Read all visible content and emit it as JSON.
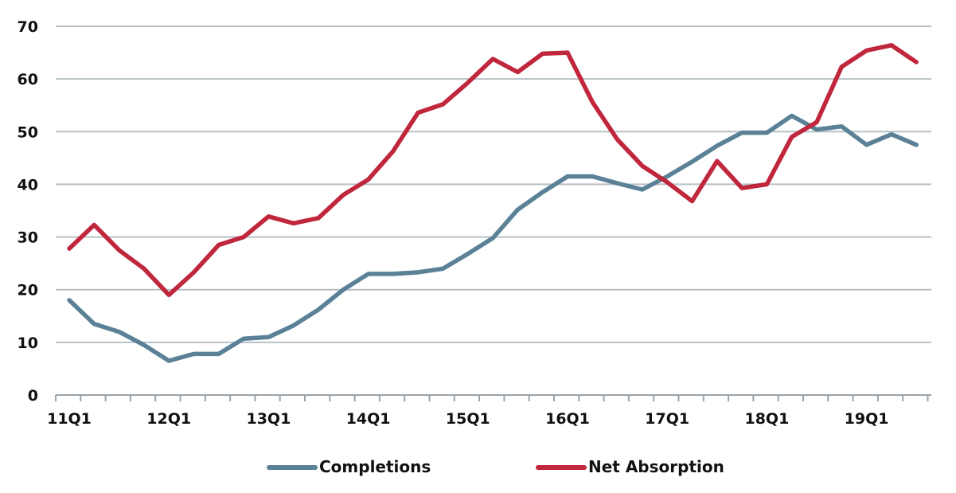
{
  "chart_data": {
    "type": "line",
    "title": "",
    "xlabel": "",
    "ylabel": "",
    "ylim": [
      0,
      70
    ],
    "y_ticks": [
      0,
      10,
      20,
      30,
      40,
      50,
      60,
      70
    ],
    "x_tick_labels": [
      "11Q1",
      "12Q1",
      "13Q1",
      "14Q1",
      "15Q1",
      "16Q1",
      "17Q1",
      "18Q1",
      "19Q1"
    ],
    "grid": "horizontal",
    "legend_position": "bottom-center",
    "categories": [
      "11Q1",
      "11Q2",
      "11Q3",
      "11Q4",
      "12Q1",
      "12Q2",
      "12Q3",
      "12Q4",
      "13Q1",
      "13Q2",
      "13Q3",
      "13Q4",
      "14Q1",
      "14Q2",
      "14Q3",
      "14Q4",
      "15Q1",
      "15Q2",
      "15Q3",
      "15Q4",
      "16Q1",
      "16Q2",
      "16Q3",
      "16Q4",
      "17Q1",
      "17Q2",
      "17Q3",
      "17Q4",
      "18Q1",
      "18Q2",
      "18Q3",
      "18Q4",
      "19Q1",
      "19Q2",
      "19Q3"
    ],
    "series": [
      {
        "name": "Completions",
        "color": "#5b8197",
        "values": [
          18.0,
          13.5,
          12.0,
          9.5,
          6.5,
          7.8,
          7.8,
          10.7,
          11.0,
          13.2,
          16.2,
          20.0,
          23.0,
          23.0,
          23.3,
          24.0,
          26.8,
          29.8,
          35.2,
          38.5,
          41.5,
          41.5,
          40.2,
          39.0,
          41.5,
          44.3,
          47.3,
          49.8,
          49.8,
          53.0,
          50.4,
          51.0,
          47.5,
          49.5,
          47.5
        ]
      },
      {
        "name": "Net Absorption",
        "color": "#c0263c",
        "values": [
          27.8,
          32.3,
          27.5,
          24.0,
          19.0,
          23.3,
          28.5,
          30.0,
          33.9,
          32.6,
          33.6,
          38.0,
          40.9,
          46.3,
          53.6,
          55.2,
          59.3,
          63.8,
          61.3,
          64.8,
          65.0,
          55.6,
          48.5,
          43.5,
          40.4,
          36.8,
          44.4,
          39.3,
          40.0,
          49.0,
          51.8,
          62.3,
          65.4,
          66.4,
          63.2
        ]
      }
    ]
  }
}
